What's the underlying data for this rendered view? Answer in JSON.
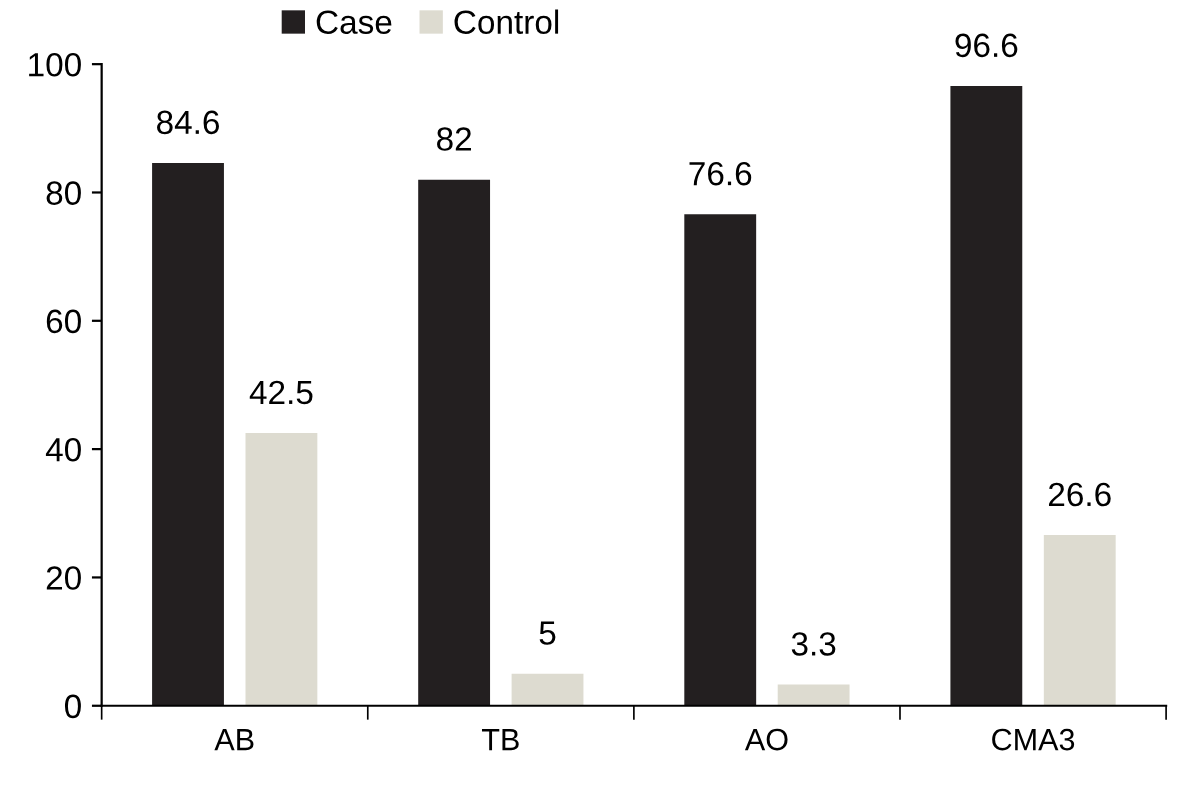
{
  "chart_data": {
    "type": "bar",
    "categories": [
      "AB",
      "TB",
      "AO",
      "CMA3"
    ],
    "series": [
      {
        "name": "Case",
        "color": "#231f20",
        "values": [
          84.6,
          82,
          76.6,
          96.6
        ]
      },
      {
        "name": "Control",
        "color": "#dddbd0",
        "values": [
          42.5,
          5,
          3.3,
          26.6
        ]
      }
    ],
    "ylim": [
      0,
      100
    ],
    "yticks": [
      0,
      20,
      40,
      60,
      80,
      100
    ],
    "data_labels": true,
    "grid": false,
    "legend": "top"
  }
}
